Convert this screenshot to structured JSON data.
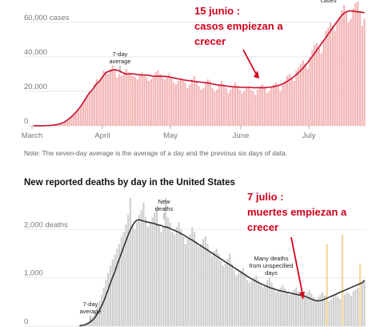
{
  "colors": {
    "case_bar": "#f4b6b6",
    "case_line": "#c8102e",
    "death_bar": "#cfcfcf",
    "death_line": "#333333",
    "unspecified_bar": "#f4d79a",
    "annotation_red": "#d0021b"
  },
  "chart_data": [
    {
      "type": "bar",
      "title": "",
      "x_ticks": [
        "March",
        "April",
        "May",
        "June",
        "July"
      ],
      "y_ticks": [
        "0",
        "20,000",
        "40,000",
        "60,000 cases"
      ],
      "ylim": [
        0,
        72000
      ],
      "days": 147,
      "series": [
        {
          "name": "",
          "kind": "daily_bar",
          "values": [
            20,
            25,
            30,
            40,
            60,
            100,
            150,
            200,
            300,
            450,
            600,
            900,
            1300,
            1800,
            2500,
            3500,
            4500,
            5500,
            7000,
            8500,
            10000,
            11500,
            13500,
            16000,
            18000,
            19500,
            20000,
            24000,
            27000,
            26000,
            28000,
            32000,
            31500,
            30000,
            33000,
            35000,
            33000,
            28000,
            30000,
            29000,
            30500,
            33000,
            31000,
            30000,
            29000,
            28000,
            27000,
            30000,
            31000,
            29000,
            28000,
            26000,
            27000,
            29000,
            31000,
            32000,
            30000,
            28000,
            27000,
            29000,
            30000,
            28000,
            25000,
            24000,
            26000,
            28000,
            27000,
            25000,
            22000,
            24000,
            27000,
            29000,
            26000,
            23000,
            21000,
            22000,
            25000,
            27000,
            26000,
            22000,
            20000,
            21000,
            24000,
            26000,
            24000,
            22000,
            19000,
            21000,
            23000,
            25000,
            23000,
            21000,
            19000,
            20000,
            22000,
            23000,
            21000,
            20000,
            18000,
            21000,
            23000,
            24000,
            22000,
            19000,
            20000,
            22000,
            24000,
            25000,
            23000,
            20000,
            24000,
            26000,
            29000,
            30000,
            28000,
            26000,
            32000,
            34000,
            36000,
            38000,
            36000,
            33000,
            40000,
            44000,
            47000,
            48000,
            45000,
            42000,
            50000,
            55000,
            57000,
            60000,
            58000,
            55000,
            60000,
            63000,
            67000,
            70000,
            66000,
            60000,
            62000,
            68000,
            71000,
            72000,
            66000,
            58000,
            62000
          ]
        },
        {
          "name": "",
          "kind": "7_day_average",
          "values": [
            20,
            25,
            30,
            40,
            60,
            90,
            140,
            200,
            300,
            430,
            600,
            860,
            1250,
            1700,
            2400,
            3300,
            4300,
            5400,
            6700,
            8100,
            9700,
            11400,
            13400,
            15500,
            17600,
            19400,
            20700,
            22600,
            24500,
            25600,
            27300,
            29100,
            30700,
            31400,
            31900,
            32300,
            32500,
            32200,
            31800,
            31100,
            30500,
            30000,
            30100,
            30200,
            30100,
            29900,
            29700,
            29600,
            29500,
            29400,
            29400,
            29200,
            29000,
            28800,
            28700,
            28700,
            28700,
            28700,
            28600,
            28500,
            28400,
            28100,
            27800,
            27500,
            27200,
            26900,
            26700,
            26500,
            26300,
            26200,
            25900,
            25800,
            25600,
            25400,
            25300,
            25100,
            25000,
            24800,
            24600,
            24300,
            24000,
            23800,
            23600,
            23500,
            23300,
            23100,
            22900,
            22700,
            22600,
            22500,
            22500,
            22400,
            22300,
            22300,
            22300,
            22300,
            22200,
            22100,
            22100,
            22100,
            22100,
            22100,
            22100,
            22200,
            22300,
            22500,
            22700,
            23000,
            23400,
            23800,
            24400,
            25000,
            25800,
            26700,
            27600,
            28600,
            29700,
            30900,
            32200,
            33600,
            35100,
            36700,
            38400,
            40200,
            42000,
            43900,
            45700,
            47600,
            49400,
            51200,
            53100,
            55000,
            56800,
            58700,
            60500,
            62300,
            64000,
            65300,
            66100,
            66500,
            66600,
            66500,
            66300,
            66100,
            66000,
            65800,
            65600
          ]
        }
      ],
      "annotations": {
        "avg_label": [
          "7-day",
          "average"
        ],
        "top_label": "cases",
        "red_annotation": [
          "15 junio :",
          "casos empiezan a",
          "crecer"
        ]
      },
      "note": "Note: The seven-day average is the average of a day and the previous six days of data."
    },
    {
      "type": "bar",
      "title": "New reported deaths by day in the United States",
      "y_ticks": [
        "0",
        "1,000",
        "2,000 deaths"
      ],
      "ylim": [
        0,
        2700
      ],
      "days": 130,
      "series": [
        {
          "name": "",
          "kind": "daily_bar",
          "values": [
            10,
            20,
            40,
            60,
            100,
            150,
            200,
            300,
            400,
            520,
            650,
            800,
            950,
            1100,
            1250,
            1380,
            1480,
            1600,
            1700,
            1850,
            1950,
            2100,
            2300,
            2650,
            2100,
            2000,
            2150,
            2300,
            2400,
            2550,
            2250,
            2050,
            2150,
            2250,
            2350,
            2450,
            2100,
            1950,
            2050,
            2650,
            2250,
            2150,
            1950,
            1900,
            2050,
            2150,
            2000,
            1850,
            1700,
            1800,
            1900,
            2050,
            1950,
            1750,
            1650,
            1700,
            1800,
            1850,
            1700,
            1550,
            1450,
            1550,
            1600,
            1500,
            1350,
            1250,
            1300,
            1400,
            1500,
            1300,
            1150,
            1050,
            1100,
            1150,
            1200,
            1100,
            950,
            900,
            950,
            1000,
            1050,
            950,
            850,
            800,
            850,
            950,
            1000,
            900,
            800,
            700,
            750,
            800,
            850,
            780,
            700,
            650,
            700,
            750,
            800,
            720,
            650,
            600,
            650,
            700,
            750,
            680,
            600,
            550,
            600,
            650,
            700,
            630,
            560,
            520,
            560,
            620,
            680,
            600,
            560,
            600,
            650,
            700,
            680,
            620,
            720,
            760,
            800,
            850,
            900,
            950
          ]
        },
        {
          "name": "",
          "kind": "7_day_average",
          "values": [
            10,
            15,
            25,
            40,
            60,
            90,
            130,
            180,
            250,
            330,
            420,
            520,
            640,
            760,
            890,
            1010,
            1130,
            1260,
            1390,
            1510,
            1640,
            1760,
            1880,
            1990,
            2080,
            2150,
            2190,
            2200,
            2190,
            2170,
            2160,
            2150,
            2140,
            2130,
            2120,
            2100,
            2090,
            2080,
            2060,
            2050,
            2040,
            2020,
            2000,
            1980,
            1960,
            1940,
            1910,
            1890,
            1860,
            1830,
            1800,
            1780,
            1750,
            1720,
            1690,
            1660,
            1630,
            1600,
            1570,
            1540,
            1510,
            1480,
            1450,
            1420,
            1390,
            1360,
            1330,
            1300,
            1270,
            1240,
            1210,
            1180,
            1150,
            1120,
            1090,
            1060,
            1030,
            1000,
            975,
            950,
            925,
            900,
            880,
            860,
            840,
            820,
            800,
            785,
            770,
            755,
            740,
            730,
            720,
            710,
            700,
            690,
            680,
            670,
            660,
            650,
            640,
            630,
            620,
            600,
            580,
            560,
            540,
            530,
            520,
            530,
            540,
            560,
            580,
            600,
            620,
            640,
            660,
            680,
            700,
            720,
            740,
            760,
            780,
            800,
            820,
            840,
            860,
            880,
            900,
            950
          ]
        },
        {
          "name": "",
          "kind": "unspecified_days",
          "indices": [
            112,
            119,
            127
          ],
          "values": [
            1700,
            1900,
            1300
          ]
        }
      ],
      "annotations": {
        "new_label": [
          "New",
          "deaths"
        ],
        "avg_label": [
          "7-day",
          "average"
        ],
        "unspecified_label": [
          "Many deaths",
          "from unspecified",
          "days"
        ],
        "red_annotation": [
          "7 julio :",
          "muertes empiezan a",
          "crecer"
        ]
      }
    }
  ]
}
